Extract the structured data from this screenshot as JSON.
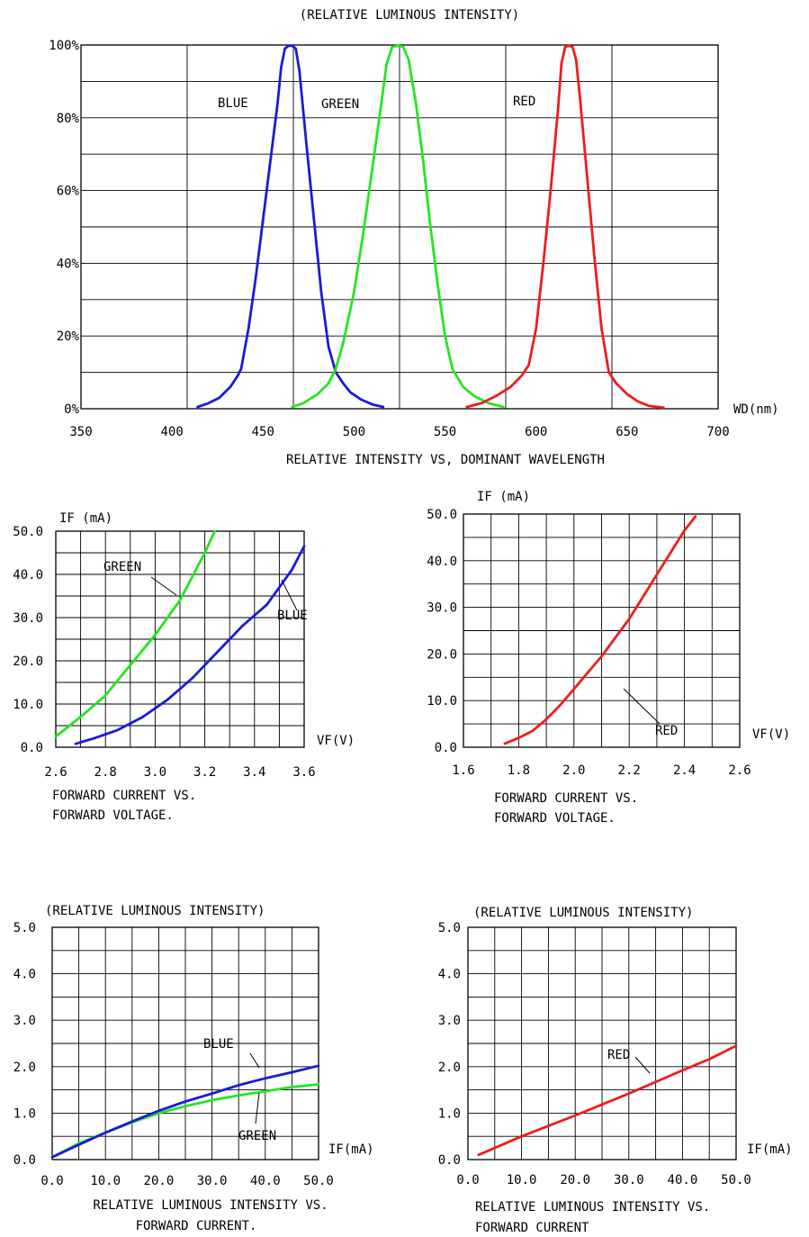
{
  "chart_data": [
    {
      "type": "line",
      "title": "(RELATIVE LUMINOUS INTENSITY)",
      "caption": [
        "RELATIVE INTENSITY  VS, DOMINANT WAVELENGTH"
      ],
      "xlabel": "WD(nm)",
      "ylabel": "",
      "xlim": [
        350,
        700
      ],
      "ylim": [
        0,
        100
      ],
      "xticks": [
        350,
        400,
        450,
        500,
        550,
        600,
        650,
        700
      ],
      "xtick_labels": [
        "350",
        "400",
        "450",
        "500",
        "550",
        "600",
        "650",
        "700"
      ],
      "yticks": [
        0,
        20,
        40,
        60,
        80,
        100
      ],
      "ytick_labels": [
        "0%",
        "20%",
        "40%",
        "60%",
        "80%",
        "100%"
      ],
      "grid": true,
      "series": [
        {
          "name": "BLUE",
          "color": "#1a1adb",
          "x": [
            414,
            420,
            426,
            432,
            436,
            438,
            442,
            446,
            450,
            454,
            458,
            460,
            462,
            464,
            466,
            468,
            470,
            474,
            478,
            482,
            486,
            490,
            494,
            498,
            504,
            510,
            516
          ],
          "y": [
            0.5,
            1.5,
            3,
            6,
            9,
            11,
            22,
            36,
            52,
            68,
            84,
            94,
            99,
            99.8,
            99.8,
            99,
            93,
            72,
            52,
            32,
            17,
            10,
            7,
            4.5,
            2.5,
            1.2,
            0.5
          ]
        },
        {
          "name": "GREEN",
          "color": "#22e622",
          "x": [
            466,
            472,
            480,
            486,
            490,
            494,
            500,
            505,
            510,
            515,
            518,
            521,
            524,
            527,
            530,
            534,
            538,
            542,
            546,
            550,
            554,
            560,
            566,
            574,
            582
          ],
          "y": [
            0.5,
            1.5,
            4,
            7,
            11,
            18,
            32,
            48,
            66,
            84,
            95,
            99.5,
            99.8,
            99.5,
            96,
            84,
            68,
            50,
            34,
            20,
            11,
            6,
            3.5,
            1.5,
            0.5
          ]
        },
        {
          "name": "RED",
          "color": "#ee1c1c",
          "x": [
            562,
            570,
            578,
            586,
            592,
            596,
            600,
            604,
            608,
            612,
            614,
            616,
            618,
            620,
            622,
            624,
            628,
            632,
            636,
            640,
            644,
            650,
            656,
            662,
            670
          ],
          "y": [
            0.5,
            1.5,
            3.5,
            6,
            9,
            12,
            22,
            40,
            60,
            82,
            95,
            99.5,
            99.8,
            99.5,
            96,
            86,
            64,
            42,
            22,
            10,
            7,
            4,
            2,
            0.8,
            0.3
          ]
        }
      ],
      "annotations": [
        "BLUE",
        "GREEN",
        "RED"
      ]
    },
    {
      "type": "line",
      "title": "",
      "caption": [
        "FORWARD CURRENT VS.",
        "FORWARD VOLTAGE."
      ],
      "xlabel": "VF(V)",
      "ylabel": "IF  (mA)",
      "xlim": [
        2.6,
        3.6
      ],
      "ylim": [
        0,
        50
      ],
      "xticks": [
        2.6,
        2.8,
        3.0,
        3.2,
        3.4,
        3.6
      ],
      "xtick_labels": [
        "2.6",
        "2.8",
        "3.0",
        "3.2",
        "3.4",
        "3.6"
      ],
      "yticks": [
        0,
        10,
        20,
        30,
        40,
        50
      ],
      "ytick_labels": [
        "0.0",
        "10.0",
        "20.0",
        "30.0",
        "40.0",
        "50.0"
      ],
      "grid": true,
      "series": [
        {
          "name": "GREEN",
          "color": "#22e622",
          "x": [
            2.6,
            2.7,
            2.8,
            2.9,
            3.0,
            3.1,
            3.2,
            3.24
          ],
          "y": [
            2.5,
            7,
            12,
            19,
            26,
            34,
            45,
            50
          ]
        },
        {
          "name": "BLUE",
          "color": "#1a1adb",
          "x": [
            2.68,
            2.75,
            2.85,
            2.95,
            3.05,
            3.15,
            3.25,
            3.35,
            3.45,
            3.55,
            3.6
          ],
          "y": [
            0.8,
            2,
            4,
            7,
            11,
            16,
            22,
            28,
            33,
            41,
            46.5
          ]
        }
      ],
      "annotations": [
        "GREEN",
        "BLUE"
      ]
    },
    {
      "type": "line",
      "title": "",
      "caption": [
        "FORWARD CURRENT VS.",
        "FORWARD VOLTAGE."
      ],
      "xlabel": "VF(V)",
      "ylabel": "IF  (mA)",
      "xlim": [
        1.6,
        2.6
      ],
      "ylim": [
        0,
        50
      ],
      "xticks": [
        1.6,
        1.8,
        2.0,
        2.2,
        2.4,
        2.6
      ],
      "xtick_labels": [
        "1.6",
        "1.8",
        "2.0",
        "2.2",
        "2.4",
        "2.6"
      ],
      "yticks": [
        0,
        10,
        20,
        30,
        40,
        50
      ],
      "ytick_labels": [
        "0.0",
        "10.0",
        "20.0",
        "30.0",
        "40.0",
        "50.0"
      ],
      "grid": true,
      "series": [
        {
          "name": "RED",
          "color": "#ee1c1c",
          "x": [
            1.75,
            1.8,
            1.85,
            1.9,
            1.95,
            2.0,
            2.1,
            2.2,
            2.3,
            2.4,
            2.44
          ],
          "y": [
            0.8,
            2,
            3.5,
            6,
            9,
            12.5,
            19.5,
            27.5,
            37,
            46.5,
            49.5
          ]
        }
      ],
      "annotations": [
        "RED"
      ]
    },
    {
      "type": "line",
      "title": "(RELATIVE LUMINOUS INTENSITY)",
      "caption": [
        "RELATIVE LUMINOUS INTENSITY VS.",
        "FORWARD CURRENT."
      ],
      "xlabel": "IF(mA)",
      "ylabel": "",
      "xlim": [
        0,
        50
      ],
      "ylim": [
        0,
        5
      ],
      "xticks": [
        0,
        10,
        20,
        30,
        40,
        50
      ],
      "xtick_labels": [
        "0.0",
        "10.0",
        "20.0",
        "30.0",
        "40.0",
        "50.0"
      ],
      "yticks": [
        0,
        1,
        2,
        3,
        4,
        5
      ],
      "ytick_labels": [
        "0.0",
        "1.0",
        "2.0",
        "3.0",
        "4.0",
        "5.0"
      ],
      "grid": true,
      "series": [
        {
          "name": "GREEN",
          "color": "#22e622",
          "x": [
            0,
            5,
            10,
            15,
            20,
            25,
            30,
            35,
            40,
            45,
            50
          ],
          "y": [
            0.05,
            0.35,
            0.58,
            0.8,
            1.0,
            1.15,
            1.28,
            1.38,
            1.47,
            1.56,
            1.62
          ]
        },
        {
          "name": "BLUE",
          "color": "#1a1adb",
          "x": [
            0,
            5,
            10,
            15,
            20,
            25,
            30,
            35,
            40,
            45,
            50
          ],
          "y": [
            0.05,
            0.32,
            0.58,
            0.82,
            1.05,
            1.25,
            1.42,
            1.6,
            1.75,
            1.88,
            2.02
          ]
        }
      ],
      "annotations": [
        "BLUE",
        "GREEN"
      ]
    },
    {
      "type": "line",
      "title": "(RELATIVE LUMINOUS INTENSITY)",
      "caption": [
        "RELATIVE LUMINOUS INTENSITY VS.",
        "FORWARD CURRENT"
      ],
      "xlabel": "IF(mA)",
      "ylabel": "",
      "xlim": [
        0,
        50
      ],
      "ylim": [
        0,
        5
      ],
      "xticks": [
        0,
        10,
        20,
        30,
        40,
        50
      ],
      "xtick_labels": [
        "0.0",
        "10.0",
        "20.0",
        "30.0",
        "40.0",
        "50.0"
      ],
      "yticks": [
        0,
        1,
        2,
        3,
        4,
        5
      ],
      "ytick_labels": [
        "0.0",
        "1.0",
        "2.0",
        "3.0",
        "4.0",
        "5.0"
      ],
      "grid": true,
      "series": [
        {
          "name": "RED",
          "color": "#ee1c1c",
          "x": [
            2,
            10,
            20,
            30,
            40,
            45,
            50
          ],
          "y": [
            0.1,
            0.5,
            0.95,
            1.42,
            1.92,
            2.16,
            2.45
          ]
        }
      ],
      "annotations": [
        "RED"
      ]
    }
  ]
}
